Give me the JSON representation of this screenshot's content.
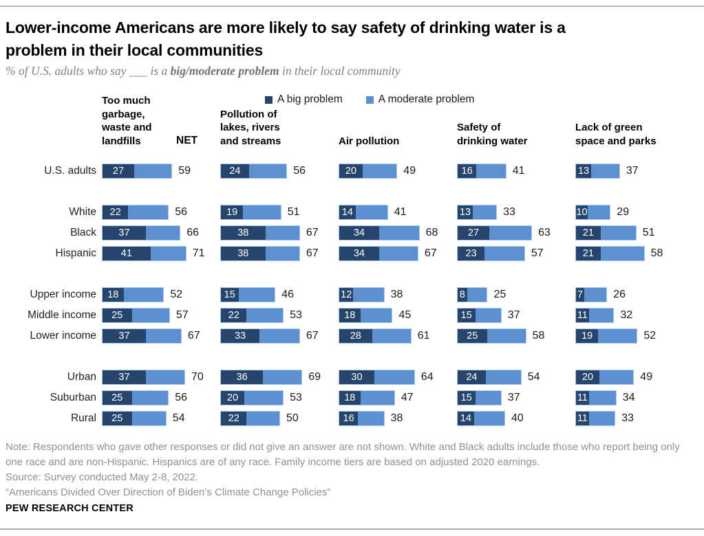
{
  "header": {
    "title": "Lower-income Americans are more likely to say safety of drinking water is a\nproblem in their local communities",
    "subtitle_prefix": "% of U.S. adults who say ___ is a ",
    "subtitle_bold": "big/moderate problem",
    "subtitle_suffix": " in their local community"
  },
  "chart_data": {
    "type": "bar",
    "orientation": "horizontal",
    "stacked": true,
    "unit": "%",
    "xlim": [
      0,
      100
    ],
    "legend_position": "top",
    "legend": [
      {
        "label": "A big problem",
        "color": "#26456d"
      },
      {
        "label": "A moderate problem",
        "color": "#5d90d1"
      }
    ],
    "net_header": "NET",
    "measures": [
      "Too much garbage, waste and landfills",
      "Pollution of lakes, rivers and streams",
      "Air pollution",
      "Safety of drinking water",
      "Lack of green space and parks"
    ],
    "measure_headers_display": [
      "Too much\ngarbage,\nwaste and\nlandfills",
      "Pollution of\nlakes, rivers\nand streams",
      "Air pollution",
      "Safety of\ndrinking water",
      "Lack of green\nspace and parks"
    ],
    "groups": [
      {
        "rows": [
          {
            "label": "U.S. adults",
            "values": [
              {
                "big": 27,
                "net": 59
              },
              {
                "big": 24,
                "net": 56
              },
              {
                "big": 20,
                "net": 49
              },
              {
                "big": 16,
                "net": 41
              },
              {
                "big": 13,
                "net": 37
              }
            ]
          }
        ]
      },
      {
        "rows": [
          {
            "label": "White",
            "values": [
              {
                "big": 22,
                "net": 56
              },
              {
                "big": 19,
                "net": 51
              },
              {
                "big": 14,
                "net": 41
              },
              {
                "big": 13,
                "net": 33
              },
              {
                "big": 10,
                "net": 29
              }
            ]
          },
          {
            "label": "Black",
            "values": [
              {
                "big": 37,
                "net": 66
              },
              {
                "big": 38,
                "net": 67
              },
              {
                "big": 34,
                "net": 68
              },
              {
                "big": 27,
                "net": 63
              },
              {
                "big": 21,
                "net": 51
              }
            ]
          },
          {
            "label": "Hispanic",
            "values": [
              {
                "big": 41,
                "net": 71
              },
              {
                "big": 38,
                "net": 67
              },
              {
                "big": 34,
                "net": 67
              },
              {
                "big": 23,
                "net": 57
              },
              {
                "big": 21,
                "net": 58
              }
            ]
          }
        ]
      },
      {
        "rows": [
          {
            "label": "Upper income",
            "values": [
              {
                "big": 18,
                "net": 52
              },
              {
                "big": 15,
                "net": 46
              },
              {
                "big": 12,
                "net": 38
              },
              {
                "big": 8,
                "net": 25
              },
              {
                "big": 7,
                "net": 26
              }
            ]
          },
          {
            "label": "Middle income",
            "values": [
              {
                "big": 25,
                "net": 57
              },
              {
                "big": 22,
                "net": 53
              },
              {
                "big": 18,
                "net": 45
              },
              {
                "big": 15,
                "net": 37
              },
              {
                "big": 11,
                "net": 32
              }
            ]
          },
          {
            "label": "Lower income",
            "values": [
              {
                "big": 37,
                "net": 67
              },
              {
                "big": 33,
                "net": 67
              },
              {
                "big": 28,
                "net": 61
              },
              {
                "big": 25,
                "net": 58
              },
              {
                "big": 19,
                "net": 52
              }
            ]
          }
        ]
      },
      {
        "rows": [
          {
            "label": "Urban",
            "values": [
              {
                "big": 37,
                "net": 70
              },
              {
                "big": 36,
                "net": 69
              },
              {
                "big": 30,
                "net": 64
              },
              {
                "big": 24,
                "net": 54
              },
              {
                "big": 20,
                "net": 49
              }
            ]
          },
          {
            "label": "Suburban",
            "values": [
              {
                "big": 25,
                "net": 56
              },
              {
                "big": 20,
                "net": 53
              },
              {
                "big": 18,
                "net": 47
              },
              {
                "big": 15,
                "net": 37
              },
              {
                "big": 11,
                "net": 34
              }
            ]
          },
          {
            "label": "Rural",
            "values": [
              {
                "big": 25,
                "net": 54
              },
              {
                "big": 22,
                "net": 50
              },
              {
                "big": 16,
                "net": 38
              },
              {
                "big": 14,
                "net": 40
              },
              {
                "big": 11,
                "net": 33
              }
            ]
          }
        ]
      }
    ]
  },
  "notes": {
    "note": "Note: Respondents who gave other responses or did not give an answer are not shown. White and Black adults include those who report being only one race and are non-Hispanic. Hispanics are of any race. Family income tiers are based on adjusted 2020 earnings.",
    "source": "Source: Survey conducted May 2-8, 2022.",
    "report": "“Americans Divided Over Direction of Biden’s Climate Change Policies”",
    "footer": "PEW RESEARCH CENTER"
  }
}
